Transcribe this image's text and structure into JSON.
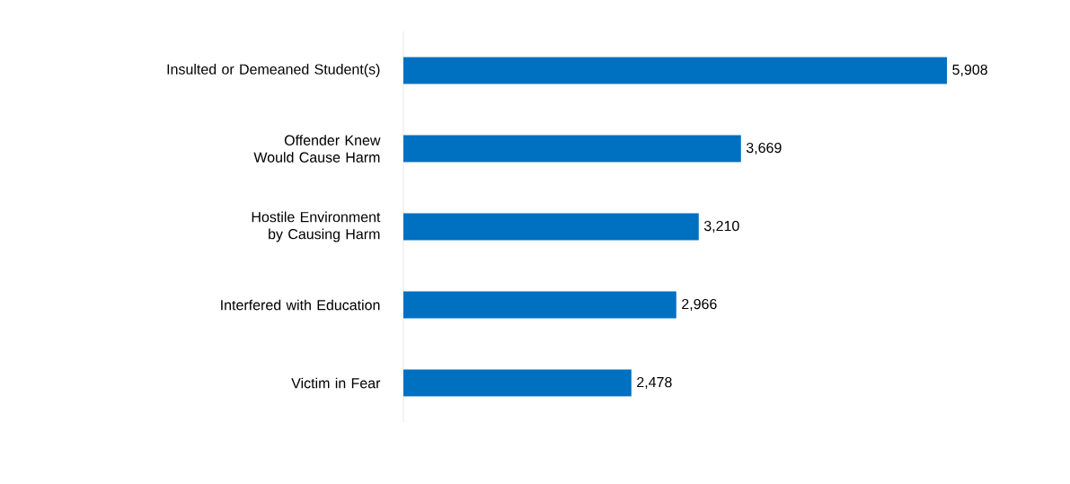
{
  "chart_data": {
    "type": "bar",
    "orientation": "horizontal",
    "categories": [
      "Insulted or Demeaned Student(s)",
      "Offender Knew Would Cause Harm",
      "Hostile Environment by Causing Harm",
      "Interfered with Education",
      "Victim in Fear"
    ],
    "values": [
      5908,
      3669,
      3210,
      2966,
      2478
    ],
    "value_labels": [
      "5,908",
      "3,669",
      "3,210",
      "2,966",
      "2,478"
    ],
    "color": "#0070c0"
  }
}
